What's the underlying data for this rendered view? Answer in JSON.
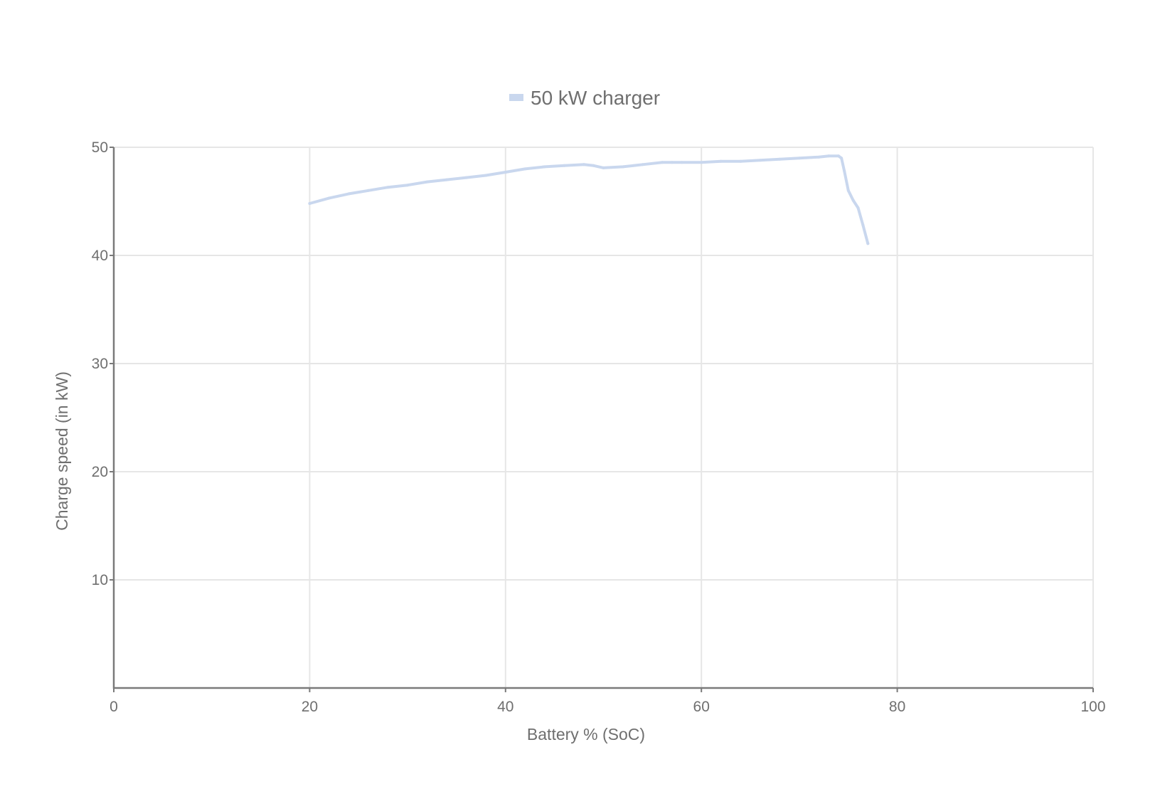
{
  "chart_data": {
    "type": "line",
    "title": "",
    "xlabel": "Battery % (SoC)",
    "ylabel": "Charge speed (in kW)",
    "xlim": [
      0,
      100
    ],
    "ylim": [
      0,
      50
    ],
    "x_ticks": [
      "0",
      "20",
      "40",
      "60",
      "80",
      "100"
    ],
    "y_ticks": [
      "10",
      "20",
      "30",
      "40",
      "50"
    ],
    "grid": true,
    "legend_position": "top-center",
    "series": [
      {
        "name": "50 kW charger",
        "color": "#c9d7ee",
        "x": [
          20,
          22,
          24,
          26,
          28,
          30,
          32,
          34,
          36,
          38,
          40,
          42,
          44,
          46,
          48,
          49,
          50,
          52,
          54,
          56,
          57,
          58,
          60,
          62,
          64,
          66,
          68,
          70,
          72,
          73,
          74,
          74.3,
          74.6,
          75,
          75.5,
          76,
          76.5,
          77
        ],
        "y": [
          44.8,
          45.3,
          45.7,
          46.0,
          46.3,
          46.5,
          46.8,
          47.0,
          47.2,
          47.4,
          47.7,
          48.0,
          48.2,
          48.3,
          48.4,
          48.3,
          48.1,
          48.2,
          48.4,
          48.6,
          48.6,
          48.6,
          48.6,
          48.7,
          48.7,
          48.8,
          48.9,
          49.0,
          49.1,
          49.2,
          49.2,
          49.0,
          47.8,
          46.0,
          45.1,
          44.4,
          42.8,
          41.1
        ]
      }
    ]
  }
}
